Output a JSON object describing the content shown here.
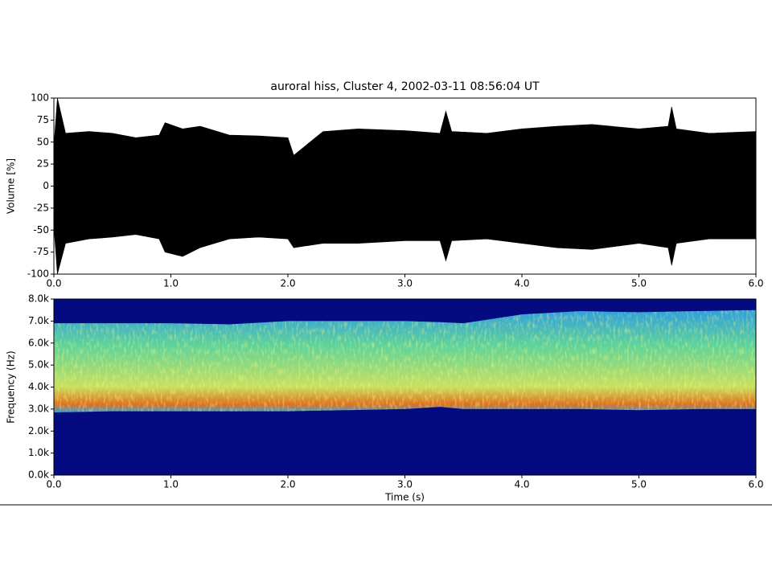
{
  "chart_data": [
    {
      "type": "waveform",
      "title": "auroral hiss, Cluster 4, 2002-03-11 08:56:04 UT",
      "y_label": "Volume [%]",
      "x": [
        0,
        0.03,
        0.1,
        0.3,
        0.5,
        0.7,
        0.9,
        0.95,
        1.1,
        1.25,
        1.5,
        1.75,
        2.0,
        2.05,
        2.3,
        2.6,
        3.0,
        3.3,
        3.35,
        3.4,
        3.7,
        4.0,
        4.3,
        4.6,
        5.0,
        5.25,
        5.28,
        5.32,
        5.6,
        6.0
      ],
      "series": [
        {
          "color": "#000000",
          "values": [
            45,
            100,
            60,
            62,
            60,
            55,
            58,
            72,
            65,
            68,
            58,
            57,
            55,
            35,
            62,
            65,
            63,
            60,
            85,
            62,
            60,
            65,
            68,
            70,
            65,
            68,
            90,
            65,
            60,
            62
          ]
        },
        {
          "color": "#000000",
          "values": [
            -45,
            -100,
            -65,
            -60,
            -58,
            -55,
            -60,
            -75,
            -80,
            -70,
            -60,
            -58,
            -60,
            -70,
            -65,
            -65,
            -62,
            -62,
            -85,
            -62,
            -60,
            -65,
            -70,
            -72,
            -65,
            -70,
            -90,
            -65,
            -60,
            -60
          ]
        }
      ],
      "xlim": [
        0,
        6
      ],
      "xticks": [
        {
          "value": 0,
          "label": "0.0"
        },
        {
          "value": 1,
          "label": "1.0"
        },
        {
          "value": 2,
          "label": "2.0"
        },
        {
          "value": 3,
          "label": "3.0"
        },
        {
          "value": 4,
          "label": "4.0"
        },
        {
          "value": 5,
          "label": "5.0"
        },
        {
          "value": 6,
          "label": "6.0"
        }
      ],
      "ylim": [
        -100,
        100
      ],
      "yticks": [
        -100,
        -75,
        -50,
        -25,
        0,
        25,
        50,
        75,
        100
      ]
    },
    {
      "type": "spectrogram",
      "x_label": "Time (s)",
      "y_label": "Frequency (Hz)",
      "background_color": "#040a80",
      "x": [
        0,
        0.5,
        1,
        1.5,
        2,
        2.5,
        3,
        3.3,
        3.5,
        4,
        4.5,
        5,
        5.5,
        6
      ],
      "series": [
        {
          "color": "#2f9de0",
          "values": [
            6900,
            6900,
            6900,
            6850,
            7000,
            7000,
            7000,
            6950,
            6900,
            7300,
            7450,
            7400,
            7450,
            7500
          ]
        },
        {
          "color": "#e07020",
          "values": [
            2850,
            2900,
            2900,
            2900,
            2900,
            2950,
            3000,
            3100,
            3000,
            3000,
            3000,
            2950,
            3000,
            3000
          ]
        }
      ],
      "xlim": [
        0,
        6
      ],
      "xticks": [
        {
          "value": 0,
          "label": "0.0"
        },
        {
          "value": 1,
          "label": "1.0"
        },
        {
          "value": 2,
          "label": "2.0"
        },
        {
          "value": 3,
          "label": "3.0"
        },
        {
          "value": 4,
          "label": "4.0"
        },
        {
          "value": 5,
          "label": "5.0"
        },
        {
          "value": 6,
          "label": "6.0"
        }
      ],
      "ylim": [
        0,
        8000
      ],
      "yticks": [
        {
          "value": 0,
          "label": "0.0k"
        },
        {
          "value": 1000,
          "label": "1.0k"
        },
        {
          "value": 2000,
          "label": "2.0k"
        },
        {
          "value": 3000,
          "label": "3.0k"
        },
        {
          "value": 4000,
          "label": "4.0k"
        },
        {
          "value": 5000,
          "label": "5.0k"
        },
        {
          "value": 6000,
          "label": "6.0k"
        },
        {
          "value": 7000,
          "label": "7.0k"
        },
        {
          "value": 8000,
          "label": "8.0k"
        }
      ]
    }
  ]
}
